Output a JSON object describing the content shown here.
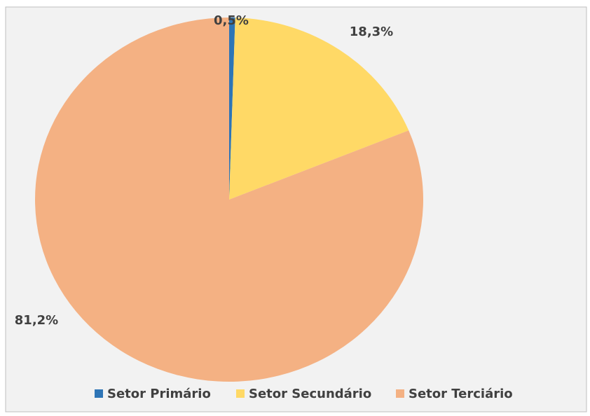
{
  "chart_data": {
    "type": "pie",
    "categories": [
      "Setor Primário",
      "Setor Secundário",
      "Setor Terciário"
    ],
    "values": [
      0.5,
      18.3,
      81.2
    ],
    "value_labels": [
      "0,5%",
      "18,3%",
      "81,2%"
    ],
    "colors": [
      "#2e75b6",
      "#ffd966",
      "#f4b183"
    ],
    "legend": "bottom"
  }
}
